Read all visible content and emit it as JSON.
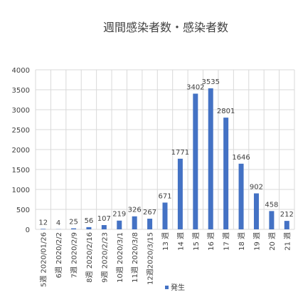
{
  "chart_data": {
    "type": "bar",
    "title": "週間感染者数・感染者数",
    "categories": [
      "5週 2020/01/26",
      "6週 2020/2/2",
      "7週 2020/2/9",
      "8週 2020/2/16",
      "9週 2020/2/23",
      "10週 2020/3/1",
      "11週 2020/3/8",
      "12週2020/3/15",
      "13 週",
      "14 週",
      "15 週",
      "16 週",
      "17 週",
      "18 週",
      "19 週",
      "20 週",
      "21 週"
    ],
    "series": [
      {
        "name": "発生",
        "values": [
          12,
          4,
          25,
          56,
          107,
          219,
          326,
          267,
          671,
          1771,
          3402,
          3535,
          2801,
          1646,
          902,
          458,
          212
        ]
      }
    ],
    "ylim": [
      0,
      4000
    ],
    "yticks": [
      0,
      500,
      1000,
      1500,
      2000,
      2500,
      3000,
      3500,
      4000
    ],
    "grid": true,
    "legend_position": "bottom",
    "colors": {
      "bar": "#4472c4",
      "grid": "#d9d9d9",
      "text": "#404040"
    }
  }
}
